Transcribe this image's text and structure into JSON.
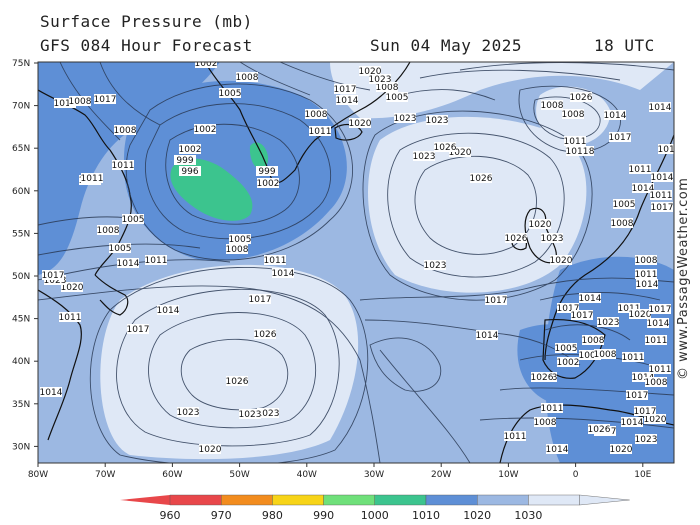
{
  "header": {
    "title": "Surface Pressure (mb)",
    "subtitle": "GFS 084 Hour Forecast",
    "date": "Sun 04 May 2025",
    "time": "18 UTC"
  },
  "credit": "© www.PassageWeather.com",
  "axes": {
    "lat_labels": [
      "75N",
      "70N",
      "65N",
      "60N",
      "55N",
      "50N",
      "45N",
      "40N",
      "35N",
      "30N"
    ],
    "lon_labels": [
      "80W",
      "70W",
      "60W",
      "50W",
      "40W",
      "30W",
      "20W",
      "10W",
      "0",
      "10E"
    ]
  },
  "legend": {
    "values": [
      "960",
      "970",
      "980",
      "990",
      "1000",
      "1010",
      "1020",
      "1030"
    ],
    "colors": [
      "#e8474a",
      "#f28c1e",
      "#f7d418",
      "#6fe07a",
      "#3cc48e",
      "#5e8fd6",
      "#9cb8e2",
      "#dfe8f6"
    ]
  },
  "map_colors": {
    "ocean_low": "#5e8fd6",
    "ocean_mid": "#9cb8e2",
    "ocean_high": "#dfe8f6",
    "deep_low": "#3cc48e",
    "coast": "#111111",
    "isobar": "#2a3a55"
  },
  "pressure_labels": [
    "1002",
    "1008",
    "1005",
    "1002",
    "1002",
    "999",
    "996",
    "1002",
    "999",
    "1002",
    "1005",
    "1008",
    "1011",
    "1014",
    "1017",
    "1014",
    "1017",
    "1008",
    "1011",
    "1014",
    "1017",
    "1020",
    "1023",
    "1026",
    "1023",
    "1023",
    "1020",
    "1026",
    "1023",
    "1026",
    "1023",
    "1023",
    "1020",
    "1017",
    "1014",
    "1011",
    "1008",
    "1014",
    "1017",
    "1020",
    "1023",
    "1026",
    "1026",
    "1023",
    "1020",
    "1017",
    "1014",
    "1017",
    "1014",
    "1011",
    "1008",
    "1005",
    "1008",
    "1011",
    "1014",
    "1011",
    "1008",
    "1005",
    "1002",
    "1005",
    "1008",
    "1011",
    "1014",
    "1017",
    "1020",
    "1023",
    "1026",
    "1017",
    "1014",
    "1011",
    "1008",
    "1011",
    "1014",
    "1017",
    "1020",
    "1023",
    "1026",
    "1020",
    "1017",
    "1014",
    "1011",
    "1011",
    "1008",
    "1011",
    "1014",
    "1017",
    "1014",
    "1011",
    "1011",
    "1008",
    "1008",
    "1008",
    "1005",
    "1005",
    "1008",
    "1011",
    "1011",
    "1014",
    "1017",
    "1011",
    "1008",
    "1014",
    "1011",
    "1008",
    "1005",
    "1020",
    "1023",
    "1023",
    "1026",
    "1011",
    "1014",
    "1017",
    "1020",
    "1023",
    "1023"
  ]
}
